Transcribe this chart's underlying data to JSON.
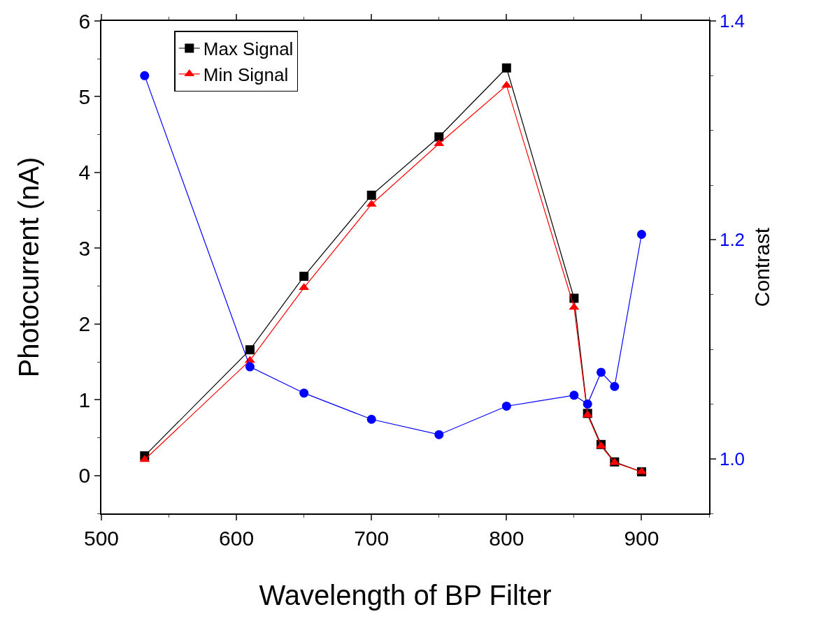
{
  "chart_data": {
    "type": "line",
    "xlabel": "Wavelength of BP Filter",
    "ylabel": "Photocurrent (nA)",
    "y2label": "Contrast",
    "x": [
      532,
      610,
      650,
      700,
      750,
      800,
      850,
      860,
      870,
      880,
      900
    ],
    "xlim": [
      500,
      950
    ],
    "xticks": [
      500,
      600,
      700,
      800,
      900
    ],
    "ylim": [
      -0.5,
      6
    ],
    "yticks": [
      0,
      1,
      2,
      3,
      4,
      5,
      6
    ],
    "y2lim": [
      0.95,
      1.4
    ],
    "y2ticks": [
      {
        "value": 1.0,
        "label": "1.0"
      },
      {
        "value": 1.2,
        "label": "1.2"
      },
      {
        "value": 1.4,
        "label": "1.4"
      }
    ],
    "grid": false,
    "legend": "top left",
    "series": [
      {
        "name": "Max Signal",
        "color": "#000000",
        "marker": "square",
        "values": [
          0.26,
          1.66,
          2.63,
          3.7,
          4.47,
          5.38,
          2.34,
          0.82,
          0.41,
          0.18,
          0.05
        ]
      },
      {
        "name": "Min Signal",
        "color": "#ff0000",
        "marker": "triangle",
        "values": [
          0.21,
          1.52,
          2.48,
          3.58,
          4.38,
          5.15,
          2.22,
          0.8,
          0.39,
          0.17,
          0.05
        ]
      },
      {
        "color": "#0000ff",
        "marker": "circle",
        "axis": "y2",
        "values": [
          1.35,
          1.084,
          1.06,
          1.036,
          1.022,
          1.048,
          1.058,
          1.05,
          1.079,
          1.066,
          1.205
        ]
      }
    ]
  }
}
